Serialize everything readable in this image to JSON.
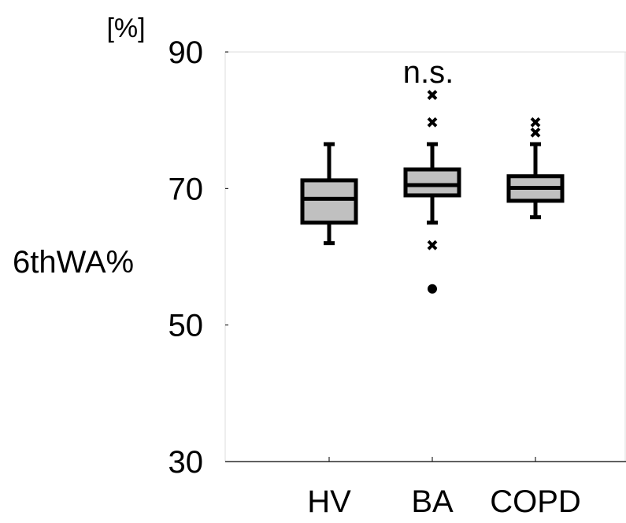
{
  "chart_data": {
    "type": "box",
    "unit_label": "[%]",
    "ylabel": "6thWA%",
    "annotation": "n.s.",
    "ylim": [
      30,
      90
    ],
    "yticks": [
      30,
      50,
      70,
      90
    ],
    "ytick_labels": [
      "30",
      "50",
      "70",
      "90"
    ],
    "grid": false,
    "categories": [
      "HV",
      "BA",
      "COPD"
    ],
    "boxes": [
      {
        "category": "HV",
        "whisker_low": 62.0,
        "q1": 65.0,
        "median": 68.5,
        "q3": 71.2,
        "whisker_high": 76.5,
        "outliers_cross": [],
        "outliers_dot": []
      },
      {
        "category": "BA",
        "whisker_low": 65.0,
        "q1": 69.0,
        "median": 70.5,
        "q3": 72.8,
        "whisker_high": 76.5,
        "outliers_cross": [
          83.7,
          79.7,
          61.7
        ],
        "outliers_dot": [
          55.3
        ]
      },
      {
        "category": "COPD",
        "whisker_low": 65.8,
        "q1": 68.2,
        "median": 70.1,
        "q3": 71.8,
        "whisker_high": 76.5,
        "outliers_cross": [
          79.7,
          78.2
        ],
        "outliers_dot": []
      }
    ],
    "colors": {
      "box_fill": "#c0c0c0",
      "stroke": "#000000",
      "axis": "#000000",
      "frame": "#dddddd"
    }
  }
}
